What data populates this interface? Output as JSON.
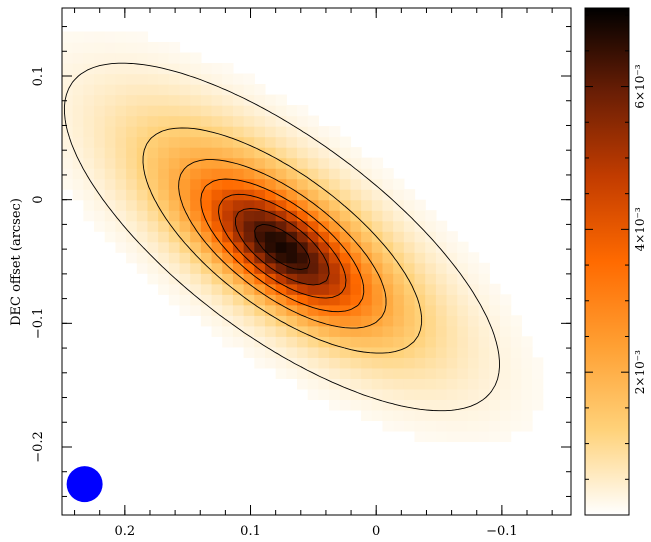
{
  "chart_data": {
    "type": "heatmap",
    "title": "",
    "xlabel": "",
    "ylabel": "DEC offset (arcsec)",
    "xlim": [
      0.25,
      -0.155
    ],
    "ylim": [
      -0.255,
      0.155
    ],
    "x_ticks": [
      0.2,
      0.1,
      0,
      -0.1
    ],
    "x_tick_labels": [
      "0.2",
      "0.1",
      "0",
      "−0.1"
    ],
    "y_ticks": [
      0.1,
      0,
      -0.1,
      -0.2
    ],
    "y_tick_labels": [
      "0.1",
      "0",
      "−0.1",
      "−0.2"
    ],
    "colorbar": {
      "range": [
        0,
        0.0071
      ],
      "ticks": [
        0.002,
        0.004,
        0.006
      ],
      "tick_labels": [
        "2×10⁻³",
        "4×10⁻³",
        "6×10⁻³"
      ],
      "colormap": [
        "#ffffff",
        "#ffd27a",
        "#ffa033",
        "#ff6a00",
        "#c23c00",
        "#6a1e05",
        "#000000"
      ]
    },
    "source": {
      "peak_value": 0.0069,
      "peak_position": [
        0.075,
        -0.04
      ],
      "elongation_pa_deg": -37,
      "contour_levels": [
        0.0003,
        0.0012,
        0.0022,
        0.0032,
        0.0042,
        0.0052,
        0.0062
      ]
    },
    "beam": {
      "position": [
        0.232,
        -0.23
      ],
      "color": "#0000ff"
    }
  }
}
